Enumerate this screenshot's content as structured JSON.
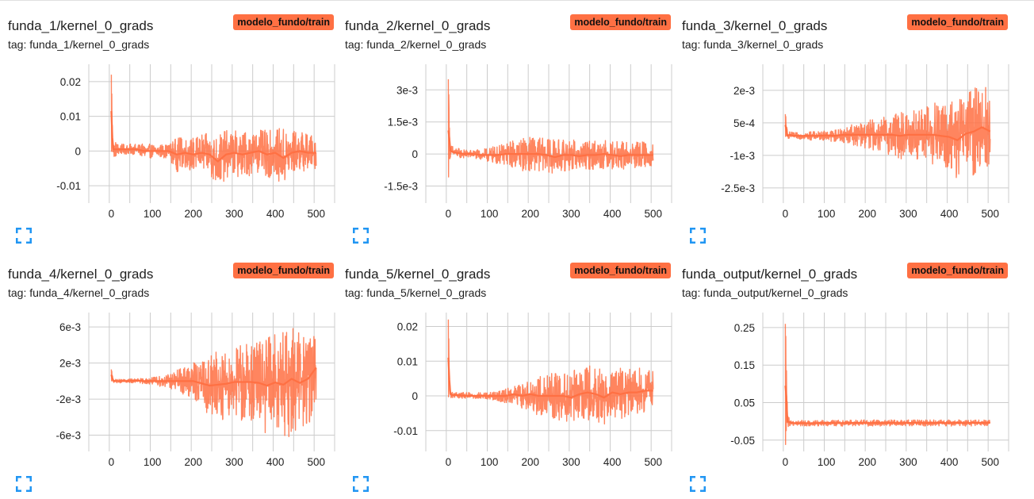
{
  "colors": {
    "series": "#ff7043",
    "badge_bg": "#ff7043",
    "badge_text": "#111111",
    "grid": "#cccccc",
    "expand_icon": "#2196f3"
  },
  "cards": [
    {
      "title": "funda_1/kernel_0_grads",
      "tag": "tag: funda_1/kernel_0_grads",
      "run": "modelo_fundo/train",
      "icon": "fullscreen-icon"
    },
    {
      "title": "funda_2/kernel_0_grads",
      "tag": "tag: funda_2/kernel_0_grads",
      "run": "modelo_fundo/train",
      "icon": "fullscreen-icon"
    },
    {
      "title": "funda_3/kernel_0_grads",
      "tag": "tag: funda_3/kernel_0_grads",
      "run": "modelo_fundo/train",
      "icon": "fullscreen-icon"
    },
    {
      "title": "funda_4/kernel_0_grads",
      "tag": "tag: funda_4/kernel_0_grads",
      "run": "modelo_fundo/train",
      "icon": "fullscreen-icon"
    },
    {
      "title": "funda_5/kernel_0_grads",
      "tag": "tag: funda_5/kernel_0_grads",
      "run": "modelo_fundo/train",
      "icon": "fullscreen-icon"
    },
    {
      "title": "funda_output/kernel_0_grads",
      "tag": "tag: funda_output/kernel_0_grads",
      "run": "modelo_fundo/train",
      "icon": "fullscreen-icon"
    }
  ],
  "chart_data": [
    {
      "type": "line",
      "x_ticks": [
        0,
        100,
        200,
        300,
        400,
        500
      ],
      "xlim": [
        -55,
        545
      ],
      "y_ticks": [
        0.02,
        0.01,
        0,
        -0.01
      ],
      "y_tick_labels": [
        "0.02",
        "0.01",
        "0",
        "-0.01"
      ],
      "ylim": [
        -0.015,
        0.025
      ],
      "grid": true,
      "series": [
        {
          "x": [
            0,
            2,
            5,
            10,
            20,
            40,
            60,
            80,
            100,
            120,
            140,
            160,
            180,
            200,
            220,
            240,
            260,
            280,
            300,
            320,
            340,
            360,
            380,
            400,
            420,
            440,
            460,
            480,
            500
          ],
          "max": [
            0.022,
            0.012,
            0.003,
            0.003,
            0.002,
            0.002,
            0.002,
            0.002,
            0.002,
            0.002,
            0.002,
            0.004,
            0.004,
            0.004,
            0.005,
            0.005,
            0.005,
            0.006,
            0.006,
            0.006,
            0.006,
            0.006,
            0.006,
            0.006,
            0.007,
            0.006,
            0.006,
            0.005,
            0.004
          ],
          "min": [
            0.001,
            -0.003,
            -0.002,
            -0.002,
            -0.001,
            -0.001,
            -0.001,
            -0.002,
            -0.002,
            -0.002,
            -0.002,
            -0.006,
            -0.005,
            -0.006,
            -0.006,
            -0.007,
            -0.011,
            -0.008,
            -0.007,
            -0.008,
            -0.007,
            -0.006,
            -0.008,
            -0.007,
            -0.011,
            -0.007,
            -0.006,
            -0.006,
            -0.005
          ]
        }
      ]
    },
    {
      "type": "line",
      "x_ticks": [
        0,
        100,
        200,
        300,
        400,
        500
      ],
      "xlim": [
        -55,
        545
      ],
      "y_ticks": [
        0.003,
        0.0015,
        0,
        -0.0015
      ],
      "y_tick_labels": [
        "3e-3",
        "1.5e-3",
        "0",
        "-1.5e-3"
      ],
      "ylim": [
        -0.0023,
        0.0042
      ],
      "grid": true,
      "series": [
        {
          "x": [
            0,
            2,
            5,
            10,
            20,
            40,
            60,
            80,
            100,
            120,
            140,
            160,
            180,
            200,
            220,
            240,
            260,
            280,
            300,
            320,
            340,
            360,
            380,
            400,
            420,
            440,
            460,
            480,
            500
          ],
          "max": [
            0.0035,
            0.0022,
            0.0005,
            0.0004,
            0.0003,
            0.0002,
            0.0002,
            0.0002,
            0.0003,
            0.0004,
            0.0005,
            0.0007,
            0.0008,
            0.0008,
            0.0008,
            0.0007,
            0.0007,
            0.0007,
            0.0007,
            0.0006,
            0.0006,
            0.0007,
            0.0007,
            0.0006,
            0.0006,
            0.0006,
            0.0006,
            0.0006,
            0.0005
          ],
          "min": [
            -0.0013,
            -0.0005,
            -0.0002,
            -0.0002,
            -0.0002,
            -0.0002,
            -0.0002,
            -0.0003,
            -0.0004,
            -0.0005,
            -0.0005,
            -0.0007,
            -0.0008,
            -0.0008,
            -0.0008,
            -0.0008,
            -0.001,
            -0.0008,
            -0.0008,
            -0.0008,
            -0.0007,
            -0.0008,
            -0.0007,
            -0.0007,
            -0.0008,
            -0.0007,
            -0.0007,
            -0.0007,
            -0.0006
          ]
        }
      ]
    },
    {
      "type": "line",
      "x_ticks": [
        0,
        100,
        200,
        300,
        400,
        500
      ],
      "xlim": [
        -55,
        545
      ],
      "y_ticks": [
        0.002,
        0.0005,
        -0.001,
        -0.0025
      ],
      "y_tick_labels": [
        "2e-3",
        "5e-4",
        "-1e-3",
        "-2.5e-3"
      ],
      "ylim": [
        -0.0032,
        0.0032
      ],
      "grid": true,
      "series": [
        {
          "x": [
            0,
            2,
            5,
            10,
            20,
            40,
            60,
            80,
            100,
            120,
            140,
            160,
            180,
            200,
            220,
            240,
            260,
            280,
            300,
            320,
            340,
            360,
            380,
            400,
            420,
            440,
            460,
            480,
            500
          ],
          "max": [
            0.0009,
            0.0007,
            0.0001,
            0.0001,
            5e-05,
            5e-05,
            0.0001,
            0.0001,
            0.00015,
            0.0002,
            0.0003,
            0.0004,
            0.0005,
            0.0006,
            0.0007,
            0.0008,
            0.0009,
            0.001,
            0.0011,
            0.0012,
            0.0013,
            0.0014,
            0.0015,
            0.0015,
            0.0016,
            0.0018,
            0.0022,
            0.0025,
            0.0019
          ],
          "min": [
            -0.0001,
            -0.0002,
            -0.0003,
            -0.0002,
            -0.00025,
            -0.00025,
            -0.0003,
            -0.0003,
            -0.0003,
            -0.0004,
            -0.0004,
            -0.0005,
            -0.0006,
            -0.0007,
            -0.0008,
            -0.0009,
            -0.001,
            -0.0012,
            -0.0012,
            -0.0013,
            -0.0014,
            -0.0015,
            -0.0017,
            -0.0018,
            -0.0022,
            -0.0018,
            -0.002,
            -0.0019,
            -0.0017
          ]
        }
      ]
    },
    {
      "type": "line",
      "x_ticks": [
        0,
        100,
        200,
        300,
        400,
        500
      ],
      "xlim": [
        -55,
        545
      ],
      "y_ticks": [
        0.006,
        0.002,
        -0.002,
        -0.006
      ],
      "y_tick_labels": [
        "6e-3",
        "2e-3",
        "-2e-3",
        "-6e-3"
      ],
      "ylim": [
        -0.0078,
        0.0076
      ],
      "grid": true,
      "series": [
        {
          "x": [
            0,
            2,
            5,
            10,
            20,
            40,
            60,
            80,
            100,
            120,
            140,
            160,
            180,
            200,
            220,
            240,
            260,
            280,
            300,
            320,
            340,
            360,
            380,
            400,
            420,
            440,
            460,
            480,
            500
          ],
          "max": [
            0.0013,
            0.0009,
            0.0003,
            0.0002,
            0.0002,
            0.0002,
            0.0003,
            0.0003,
            0.0004,
            0.0006,
            0.0008,
            0.0012,
            0.0016,
            0.002,
            0.0025,
            0.003,
            0.0034,
            0.0038,
            0.004,
            0.0044,
            0.0046,
            0.0048,
            0.005,
            0.0055,
            0.006,
            0.0065,
            0.0062,
            0.006,
            0.005
          ],
          "min": [
            0.0001,
            -0.0002,
            -0.0002,
            -0.0002,
            -0.0002,
            -0.0002,
            -0.0002,
            -0.0003,
            -0.0004,
            -0.0006,
            -0.0008,
            -0.0012,
            -0.0016,
            -0.002,
            -0.003,
            -0.004,
            -0.0042,
            -0.0044,
            -0.0042,
            -0.0046,
            -0.0048,
            -0.0052,
            -0.006,
            -0.0058,
            -0.0068,
            -0.006,
            -0.0066,
            -0.0055,
            -0.002
          ]
        }
      ]
    },
    {
      "type": "line",
      "x_ticks": [
        0,
        100,
        200,
        300,
        400,
        500
      ],
      "xlim": [
        -55,
        545
      ],
      "y_ticks": [
        0.02,
        0.01,
        0,
        -0.01
      ],
      "y_tick_labels": [
        "0.02",
        "0.01",
        "0",
        "-0.01"
      ],
      "ylim": [
        -0.016,
        0.024
      ],
      "grid": true,
      "series": [
        {
          "x": [
            0,
            2,
            5,
            10,
            20,
            40,
            60,
            80,
            100,
            120,
            140,
            160,
            180,
            200,
            220,
            240,
            260,
            280,
            300,
            320,
            340,
            360,
            380,
            400,
            420,
            440,
            460,
            480,
            500
          ],
          "max": [
            0.022,
            0.012,
            0.002,
            0.001,
            0.001,
            0.001,
            0.001,
            0.001,
            0.001,
            0.0015,
            0.002,
            0.003,
            0.004,
            0.005,
            0.006,
            0.006,
            0.007,
            0.007,
            0.007,
            0.008,
            0.009,
            0.008,
            0.008,
            0.008,
            0.008,
            0.008,
            0.008,
            0.008,
            0.007
          ],
          "min": [
            0.0,
            -0.001,
            -0.001,
            -0.0005,
            -0.0005,
            -0.001,
            -0.001,
            -0.001,
            -0.001,
            -0.0015,
            -0.002,
            -0.002,
            -0.004,
            -0.004,
            -0.006,
            -0.006,
            -0.007,
            -0.007,
            -0.008,
            -0.007,
            -0.007,
            -0.007,
            -0.009,
            -0.006,
            -0.007,
            -0.006,
            -0.006,
            -0.005,
            -0.004
          ]
        }
      ]
    },
    {
      "type": "line",
      "x_ticks": [
        0,
        100,
        200,
        300,
        400,
        500
      ],
      "xlim": [
        -55,
        545
      ],
      "y_ticks": [
        0.25,
        0.15,
        0.05,
        -0.05
      ],
      "y_tick_labels": [
        "0.25",
        "0.15",
        "0.05",
        "-0.05"
      ],
      "ylim": [
        -0.08,
        0.29
      ],
      "grid": true,
      "series": [
        {
          "x": [
            0,
            2,
            5,
            10,
            20,
            40,
            60,
            80,
            100,
            120,
            140,
            160,
            180,
            200,
            220,
            240,
            260,
            280,
            300,
            320,
            340,
            360,
            380,
            400,
            420,
            440,
            460,
            480,
            500
          ],
          "max": [
            0.26,
            0.2,
            0.02,
            0.008,
            0.003,
            0.003,
            0.003,
            0.004,
            0.004,
            0.003,
            0.004,
            0.004,
            0.004,
            0.004,
            0.004,
            0.004,
            0.004,
            0.004,
            0.004,
            0.004,
            0.004,
            0.004,
            0.004,
            0.004,
            0.004,
            0.004,
            0.004,
            0.004,
            0.003
          ],
          "min": [
            -0.07,
            -0.04,
            -0.02,
            -0.012,
            -0.012,
            -0.012,
            -0.013,
            -0.013,
            -0.012,
            -0.012,
            -0.013,
            -0.012,
            -0.012,
            -0.013,
            -0.012,
            -0.013,
            -0.012,
            -0.013,
            -0.012,
            -0.012,
            -0.013,
            -0.012,
            -0.012,
            -0.013,
            -0.012,
            -0.013,
            -0.012,
            -0.012,
            -0.011
          ]
        }
      ]
    }
  ]
}
